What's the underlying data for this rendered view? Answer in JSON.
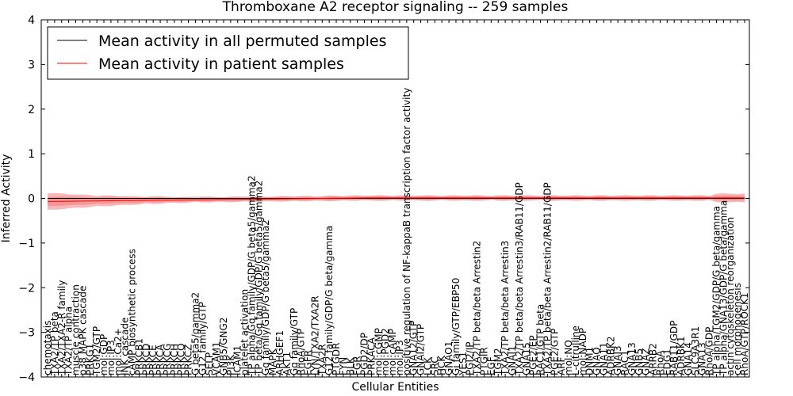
{
  "chart_data": {
    "type": "line",
    "title": "Thromboxane A2 receptor signaling -- 259 samples",
    "xlabel": "Cellular Entities",
    "ylabel": "Inferred Activity",
    "ylim": [
      -4,
      4
    ],
    "yticks": [
      -4,
      -3,
      -2,
      -1,
      0,
      1,
      2,
      3,
      4
    ],
    "legend_position": "top-left",
    "colors": {
      "permuted": "#000000",
      "patient": "#ff0000",
      "patient_band": "#f08080",
      "permuted_band": "#c0c0c0"
    },
    "series": [
      {
        "name": "Mean activity in all permuted samples",
        "color": "#000000"
      },
      {
        "name": "Mean activity in patient samples",
        "color": "#ff0000"
      }
    ],
    "entities": [
      "chemotaxis",
      "TXA2/TP beta",
      "TXA2/TXA2-R family",
      "TXA2/TP alpha",
      "muscle contraction",
      "p38 MAPK cascade",
      "PRKG1",
      "TGM2/GTP",
      "mol:GDP",
      "mol:IP3",
      "mol:Ca2+",
      "JNK cascade",
      "cAMP biosynthetic process",
      "PRKCB1",
      "PRKCD",
      "PRKCE",
      "PRKCA",
      "PRKCG",
      "PRKCH",
      "PRKCQ",
      "PRKCZ",
      "G beta5/gamma2",
      "G12 family/GTP",
      "SELP",
      "VCAM1",
      "GNB5/GNG2",
      "PI3K",
      "ICAM1",
      "platelet activation",
      "TP alpha/Gq family/GDP/G beta5/gamma2",
      "TP beta/Gq family/GDP/G beta5/gamma2",
      "Gq family/GDP/G beta5/gamma2",
      "MAPK",
      "ARHGEF1",
      "AKT1",
      "Gq family/GTP",
      "RhoA/GTP",
      "EGFR",
      "LYN/TXA2/TXA2R",
      "TXA2R",
      "G12 family/GDP/G beta/gamma",
      "PTGDR",
      "FYN",
      "BLK",
      "FGR",
      "PGD2/DP",
      "PRKACA",
      "mol:cGMP",
      "mol:PGD2",
      "mol:cAMP",
      "mol:IP3",
      "positive regulation of NF-kappaB transcription factor activity",
      "GNA12/GTP",
      "GNAI2/GTP",
      "LCK",
      "SRC",
      "HCK",
      "GNAO1",
      "Gi family/GTP/EBP50",
      "YES1",
      "PGI2/IP",
      "TXA2/TP beta/beta Arrestin2",
      "PTGIR",
      "EGF",
      "TGM2",
      "TXA2/TP beta/beta Arrestin3",
      "GNAI1",
      "TXA2/TP beta/beta Arrestin3/RAB11/GDP",
      "GNA15",
      "PGE2/EP",
      "RAC1/GTP beta",
      "TXA2/TP beta/beta Arrestin2/RAB11/GDP",
      "PGE2/GTP",
      "ARF",
      "mol:NO",
      "L-citrulline",
      "mol:NADP",
      "DNM1",
      "GNAQ",
      "GNA11",
      "ADRBK2",
      "GNAI3",
      "RAC1",
      "GNA13",
      "GNB5",
      "GNAZ",
      "ARRB2",
      "RhoA",
      "EDG1",
      "RAB11/GDP",
      "ADRBK1",
      "GNA14",
      "SLC9A3R1",
      "GNA13",
      "RhoA/GDP",
      "TP alpha/TGM2/GDP/G beta/gamma",
      "TP alpha/GNA13/GDP/G beta/gamma",
      "actin cytoskeleton reorganization",
      "cell morphogenesis",
      "RhoA/GTP/ROCK1"
    ],
    "patient_mean_start": -0.07,
    "patient_mean_end": 0.01,
    "patient_band_halfwidth_max": 0.18,
    "permuted_mean": 0.0,
    "permuted_band_halfwidth_max": 0.05
  }
}
